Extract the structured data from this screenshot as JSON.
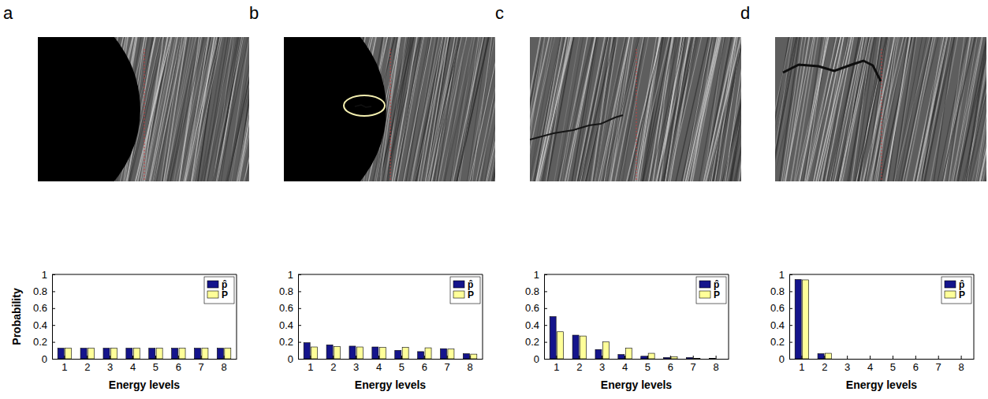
{
  "chart_data": [
    {
      "type": "bar",
      "panel": "a",
      "y_label": "Probability",
      "x_label": "Energy levels",
      "categories": [
        "1",
        "2",
        "3",
        "4",
        "5",
        "6",
        "7",
        "8"
      ],
      "series": [
        {
          "name": "p̂",
          "color": "#14148c",
          "values": [
            0.125,
            0.125,
            0.125,
            0.125,
            0.125,
            0.125,
            0.125,
            0.125
          ]
        },
        {
          "name": "P",
          "color": "#ffff99",
          "values": [
            0.125,
            0.125,
            0.125,
            0.125,
            0.125,
            0.125,
            0.125,
            0.125
          ]
        }
      ],
      "ylim": [
        0,
        1
      ],
      "yticks": [
        0,
        0.2,
        0.4,
        0.6,
        0.8,
        1
      ],
      "legend": "upper right"
    },
    {
      "type": "bar",
      "panel": "b",
      "x_label": "Energy levels",
      "categories": [
        "1",
        "2",
        "3",
        "4",
        "5",
        "6",
        "7",
        "8"
      ],
      "series": [
        {
          "name": "p̂",
          "color": "#14148c",
          "values": [
            0.19,
            0.165,
            0.15,
            0.14,
            0.1,
            0.085,
            0.12,
            0.06
          ]
        },
        {
          "name": "P",
          "color": "#ffff99",
          "values": [
            0.14,
            0.145,
            0.14,
            0.135,
            0.135,
            0.13,
            0.115,
            0.055
          ]
        }
      ],
      "ylim": [
        0,
        1
      ],
      "yticks": [
        0,
        0.2,
        0.4,
        0.6,
        0.8,
        1
      ],
      "legend": "upper right"
    },
    {
      "type": "bar",
      "panel": "c",
      "x_label": "Energy levels",
      "categories": [
        "1",
        "2",
        "3",
        "4",
        "5",
        "6",
        "7",
        "8"
      ],
      "series": [
        {
          "name": "p̂",
          "color": "#14148c",
          "values": [
            0.5,
            0.28,
            0.11,
            0.05,
            0.03,
            0.015,
            0.015,
            0.005
          ]
        },
        {
          "name": "P",
          "color": "#ffff99",
          "values": [
            0.32,
            0.27,
            0.2,
            0.125,
            0.065,
            0.025,
            0.005,
            0
          ]
        }
      ],
      "ylim": [
        0,
        1
      ],
      "yticks": [
        0,
        0.2,
        0.4,
        0.6,
        0.8,
        1
      ],
      "legend": "upper right"
    },
    {
      "type": "bar",
      "panel": "d",
      "x_label": "Energy levels",
      "categories": [
        "1",
        "2",
        "3",
        "4",
        "5",
        "6",
        "7",
        "8"
      ],
      "series": [
        {
          "name": "p̂",
          "color": "#14148c",
          "values": [
            0.94,
            0.06,
            0,
            0,
            0,
            0,
            0,
            0
          ]
        },
        {
          "name": "P",
          "color": "#ffff99",
          "values": [
            0.935,
            0.065,
            0,
            0,
            0,
            0,
            0,
            0
          ]
        }
      ],
      "ylim": [
        0,
        1
      ],
      "yticks": [
        0,
        0.2,
        0.4,
        0.6,
        0.8,
        1
      ],
      "legend": "upper right"
    }
  ]
}
